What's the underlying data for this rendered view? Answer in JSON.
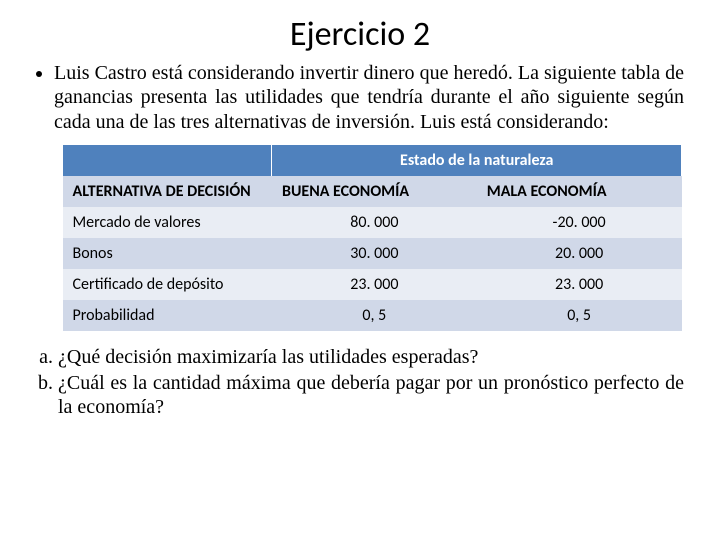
{
  "title": "Ejercicio 2",
  "intro": "Luis Castro está considerando invertir dinero que heredó. La siguiente tabla de ganancias presenta las utilidades que tendría durante el año siguiente según cada una de las tres alternativas de inversión. Luis está considerando:",
  "table": {
    "state_header": "Estado de la naturaleza",
    "columns": {
      "alt": "ALTERNATIVA DE DECISIÓN",
      "good": "BUENA ECONOMÍA",
      "bad": "MALA ECONOMÍA"
    },
    "rows": [
      {
        "alt": "Mercado de valores",
        "good": "80. 000",
        "bad": "-20. 000"
      },
      {
        "alt": "Bonos",
        "good": "30. 000",
        "bad": "20. 000"
      },
      {
        "alt": "Certificado de depósito",
        "good": "23. 000",
        "bad": "23. 000"
      },
      {
        "alt": "Probabilidad",
        "good": "0, 5",
        "bad": "0, 5"
      }
    ],
    "header_bg": "#4f81bd",
    "band_a_bg": "#e9edf4",
    "band_b_bg": "#d0d8e8"
  },
  "questions": {
    "a": "¿Qué decisión maximizaría las utilidades esperadas?",
    "b": "¿Cuál es la cantidad máxima que debería pagar por un pronóstico perfecto de la economía?"
  }
}
